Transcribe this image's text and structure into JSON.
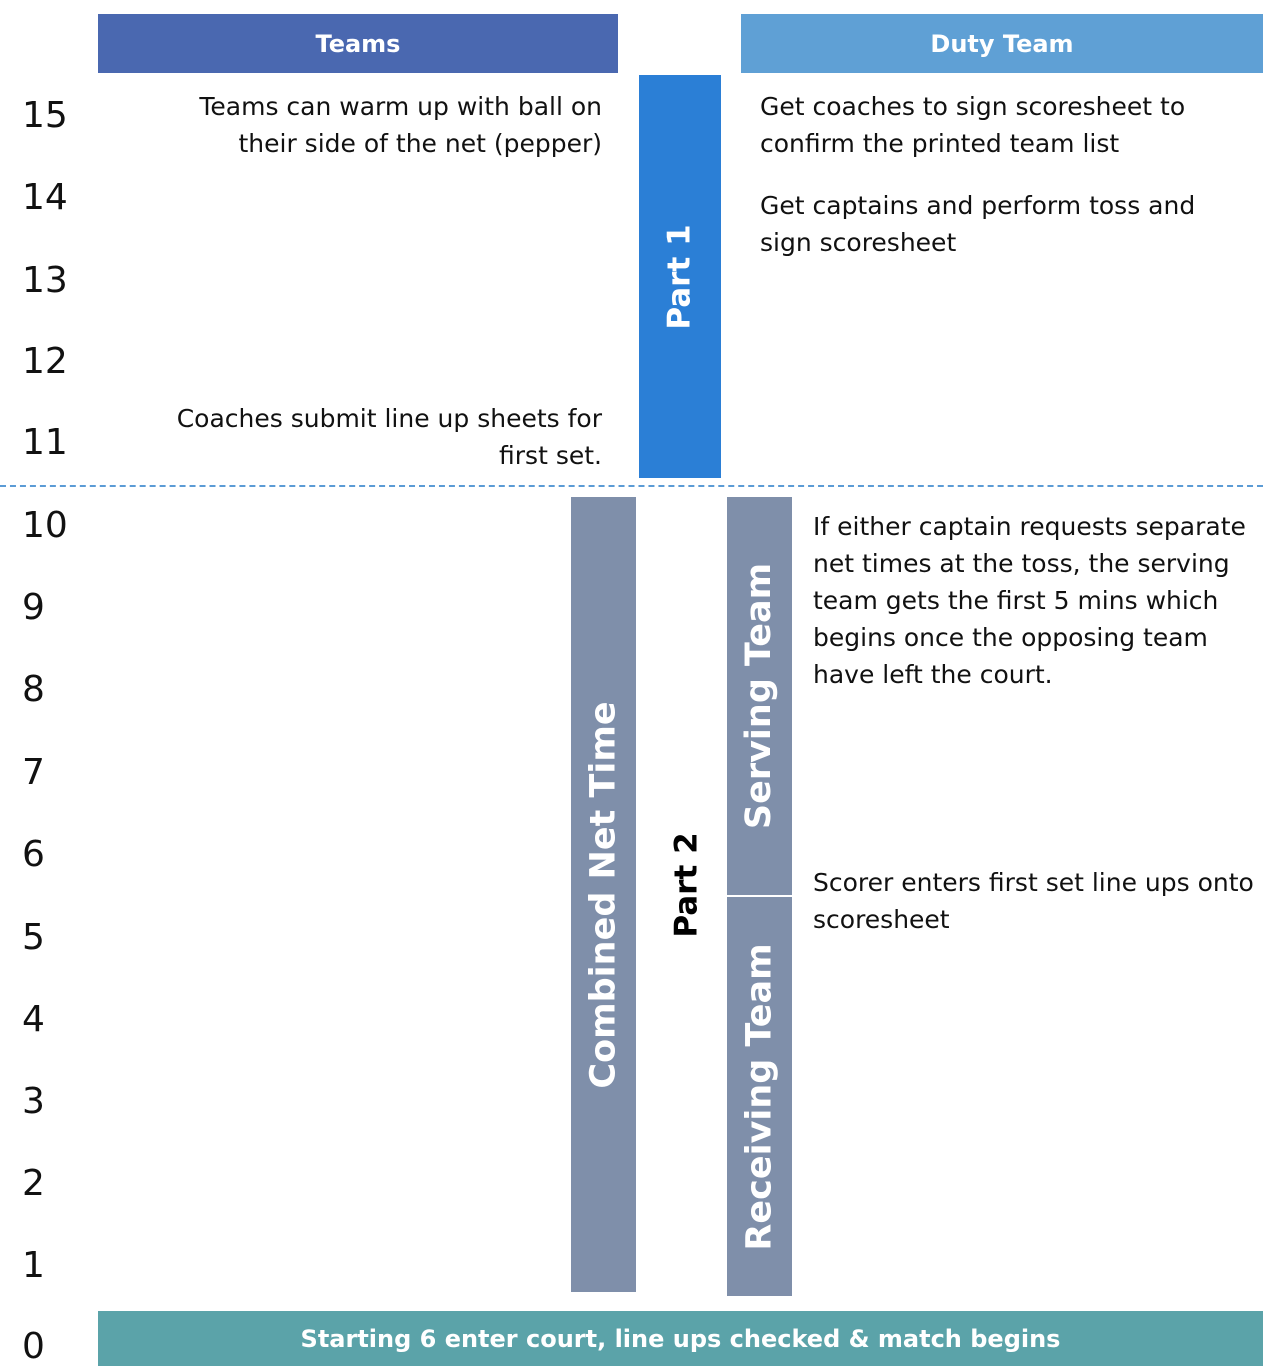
{
  "headers": {
    "teams": "Teams",
    "duty_team": "Duty Team"
  },
  "minutes": [
    "15",
    "14",
    "13",
    "12",
    "11",
    "10",
    "9",
    "8",
    "7",
    "6",
    "5",
    "4",
    "3",
    "2",
    "1",
    "0"
  ],
  "teams_notes": {
    "warm_up": "Teams can warm up with ball on their side of the net (pepper)",
    "line_up_sheets": "Coaches submit line up sheets for first set."
  },
  "duty_notes": {
    "coaches_sign": "Get coaches to sign scoresheet to confirm the printed team list",
    "captains_toss": "Get captains and perform toss and sign scoresheet",
    "separate_net_times": "If either captain requests separate net times at the toss, the serving team gets the first 5 mins which begins once the opposing team have left the court.",
    "scorer_line_ups": "Scorer enters first set line ups onto scoresheet"
  },
  "phases": {
    "part1": "Part 1",
    "part2": "Part 2",
    "combined_net_time": "Combined Net Time",
    "serving_team": "Serving Team",
    "receiving_team": "Receiving Team"
  },
  "start_banner": "Starting 6 enter court, line ups checked & match begins",
  "colors": {
    "teams_header": "#4a68b0",
    "duty_header": "#5fa0d5",
    "part1_bar": "#2b7fd6",
    "net_time_bars": "#7f8faa",
    "start_banner": "#5ba3a9",
    "divider": "#5b9bd5"
  }
}
